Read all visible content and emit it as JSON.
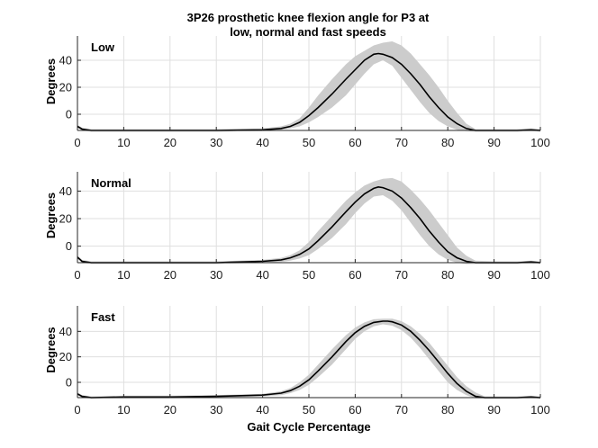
{
  "chart_data": {
    "type": "line",
    "title_lines": [
      "3P26 prosthetic knee flexion angle for P3 at",
      "low, normal and fast speeds"
    ],
    "xlabel": "Gait Cycle Percentage",
    "ylabel": "Degrees",
    "xlim": [
      0,
      100
    ],
    "xticks": [
      0,
      10,
      20,
      30,
      40,
      50,
      60,
      70,
      80,
      90,
      100
    ],
    "grid": true,
    "line_color": "#000000",
    "band_color": "#cccccc",
    "panels": [
      {
        "label": "Low",
        "ylim": [
          -12,
          58
        ],
        "yticks": [
          0,
          20,
          40
        ],
        "mean": [
          [
            0,
            -9
          ],
          [
            1,
            -11
          ],
          [
            3,
            -12
          ],
          [
            10,
            -12
          ],
          [
            20,
            -12
          ],
          [
            30,
            -12
          ],
          [
            40,
            -11.5
          ],
          [
            44,
            -10.5
          ],
          [
            46,
            -9
          ],
          [
            48,
            -6
          ],
          [
            50,
            -1
          ],
          [
            52,
            5
          ],
          [
            55,
            15
          ],
          [
            58,
            26
          ],
          [
            60,
            33
          ],
          [
            62,
            40
          ],
          [
            64,
            44.5
          ],
          [
            65,
            45
          ],
          [
            66,
            44.5
          ],
          [
            68,
            42
          ],
          [
            70,
            37
          ],
          [
            72,
            30
          ],
          [
            74,
            22
          ],
          [
            76,
            13
          ],
          [
            78,
            5
          ],
          [
            80,
            -2
          ],
          [
            82,
            -7
          ],
          [
            84,
            -10.5
          ],
          [
            86,
            -12
          ],
          [
            90,
            -12
          ],
          [
            95,
            -12
          ],
          [
            98,
            -11.5
          ],
          [
            100,
            -12
          ]
        ],
        "band_upper": [
          [
            0,
            -8
          ],
          [
            1,
            -10
          ],
          [
            3,
            -11
          ],
          [
            10,
            -11
          ],
          [
            20,
            -11
          ],
          [
            30,
            -11
          ],
          [
            40,
            -10.5
          ],
          [
            44,
            -9
          ],
          [
            46,
            -7
          ],
          [
            48,
            -3
          ],
          [
            50,
            5
          ],
          [
            52,
            14
          ],
          [
            55,
            26
          ],
          [
            58,
            37
          ],
          [
            60,
            43
          ],
          [
            62,
            47
          ],
          [
            64,
            51
          ],
          [
            66,
            53
          ],
          [
            68,
            54
          ],
          [
            70,
            51
          ],
          [
            72,
            45
          ],
          [
            74,
            37
          ],
          [
            76,
            29
          ],
          [
            78,
            20
          ],
          [
            80,
            10
          ],
          [
            82,
            1
          ],
          [
            84,
            -7
          ],
          [
            86,
            -11
          ],
          [
            90,
            -11
          ],
          [
            95,
            -11
          ],
          [
            98,
            -10.5
          ],
          [
            100,
            -11
          ]
        ],
        "band_lower": [
          [
            0,
            -10
          ],
          [
            1,
            -12
          ],
          [
            3,
            -13
          ],
          [
            10,
            -13
          ],
          [
            20,
            -13
          ],
          [
            30,
            -13
          ],
          [
            40,
            -12.5
          ],
          [
            44,
            -11.5
          ],
          [
            46,
            -10.5
          ],
          [
            48,
            -9
          ],
          [
            50,
            -6
          ],
          [
            52,
            -2
          ],
          [
            55,
            5
          ],
          [
            58,
            14
          ],
          [
            60,
            22
          ],
          [
            62,
            30
          ],
          [
            64,
            37
          ],
          [
            66,
            40
          ],
          [
            68,
            36
          ],
          [
            70,
            27
          ],
          [
            72,
            18
          ],
          [
            74,
            9
          ],
          [
            76,
            1
          ],
          [
            78,
            -5
          ],
          [
            80,
            -9
          ],
          [
            82,
            -11.5
          ],
          [
            84,
            -12.5
          ],
          [
            86,
            -13
          ],
          [
            90,
            -13
          ],
          [
            95,
            -13
          ],
          [
            98,
            -12.5
          ],
          [
            100,
            -13
          ]
        ]
      },
      {
        "label": "Normal",
        "ylim": [
          -12,
          54
        ],
        "yticks": [
          0,
          20,
          40
        ],
        "mean": [
          [
            0,
            -8
          ],
          [
            1,
            -11
          ],
          [
            3,
            -12
          ],
          [
            10,
            -12
          ],
          [
            20,
            -12
          ],
          [
            30,
            -12
          ],
          [
            40,
            -11
          ],
          [
            44,
            -10
          ],
          [
            46,
            -8.5
          ],
          [
            48,
            -6
          ],
          [
            50,
            -2
          ],
          [
            52,
            4
          ],
          [
            55,
            14
          ],
          [
            58,
            25
          ],
          [
            60,
            32
          ],
          [
            62,
            38
          ],
          [
            64,
            42
          ],
          [
            65,
            43
          ],
          [
            66,
            42.5
          ],
          [
            68,
            40
          ],
          [
            70,
            35
          ],
          [
            72,
            28
          ],
          [
            74,
            20
          ],
          [
            76,
            11
          ],
          [
            78,
            3
          ],
          [
            80,
            -4
          ],
          [
            82,
            -8.5
          ],
          [
            84,
            -11
          ],
          [
            86,
            -12
          ],
          [
            90,
            -12
          ],
          [
            95,
            -12
          ],
          [
            98,
            -11.5
          ],
          [
            100,
            -12
          ]
        ],
        "band_upper": [
          [
            0,
            -7
          ],
          [
            1,
            -10
          ],
          [
            3,
            -11
          ],
          [
            10,
            -11
          ],
          [
            20,
            -11
          ],
          [
            30,
            -11
          ],
          [
            40,
            -10
          ],
          [
            44,
            -8.5
          ],
          [
            46,
            -6.5
          ],
          [
            48,
            -3
          ],
          [
            50,
            3
          ],
          [
            52,
            11
          ],
          [
            55,
            22
          ],
          [
            58,
            33
          ],
          [
            60,
            39
          ],
          [
            62,
            44
          ],
          [
            64,
            47
          ],
          [
            66,
            49
          ],
          [
            68,
            49.5
          ],
          [
            70,
            47
          ],
          [
            72,
            41
          ],
          [
            74,
            34
          ],
          [
            76,
            26
          ],
          [
            78,
            17
          ],
          [
            80,
            8
          ],
          [
            82,
            -1
          ],
          [
            84,
            -7
          ],
          [
            86,
            -10.5
          ],
          [
            90,
            -11
          ],
          [
            95,
            -11
          ],
          [
            98,
            -10.5
          ],
          [
            100,
            -11
          ]
        ],
        "band_lower": [
          [
            0,
            -9
          ],
          [
            1,
            -12
          ],
          [
            3,
            -13
          ],
          [
            10,
            -13
          ],
          [
            20,
            -13
          ],
          [
            30,
            -13
          ],
          [
            40,
            -12
          ],
          [
            44,
            -11.5
          ],
          [
            46,
            -10.5
          ],
          [
            48,
            -9
          ],
          [
            50,
            -6.5
          ],
          [
            52,
            -2
          ],
          [
            55,
            6
          ],
          [
            58,
            16
          ],
          [
            60,
            24
          ],
          [
            62,
            31
          ],
          [
            64,
            36
          ],
          [
            66,
            37
          ],
          [
            68,
            33
          ],
          [
            70,
            26
          ],
          [
            72,
            17
          ],
          [
            74,
            8
          ],
          [
            76,
            0
          ],
          [
            78,
            -6
          ],
          [
            80,
            -10
          ],
          [
            82,
            -12
          ],
          [
            84,
            -13
          ],
          [
            86,
            -13
          ],
          [
            90,
            -13
          ],
          [
            95,
            -13
          ],
          [
            98,
            -12.5
          ],
          [
            100,
            -13
          ]
        ]
      },
      {
        "label": "Fast",
        "ylim": [
          -12,
          60
        ],
        "yticks": [
          0,
          20,
          40
        ],
        "mean": [
          [
            0,
            -9
          ],
          [
            1,
            -11
          ],
          [
            3,
            -12
          ],
          [
            10,
            -11.5
          ],
          [
            20,
            -11.5
          ],
          [
            30,
            -11
          ],
          [
            40,
            -10
          ],
          [
            44,
            -8.5
          ],
          [
            46,
            -6.5
          ],
          [
            48,
            -3
          ],
          [
            50,
            2
          ],
          [
            52,
            9
          ],
          [
            55,
            20
          ],
          [
            58,
            32
          ],
          [
            60,
            39
          ],
          [
            62,
            44
          ],
          [
            64,
            47
          ],
          [
            66,
            48
          ],
          [
            67,
            48
          ],
          [
            68,
            47.5
          ],
          [
            70,
            45
          ],
          [
            72,
            40
          ],
          [
            74,
            33
          ],
          [
            76,
            25
          ],
          [
            78,
            16
          ],
          [
            80,
            7
          ],
          [
            82,
            -1
          ],
          [
            84,
            -7
          ],
          [
            86,
            -11
          ],
          [
            88,
            -12
          ],
          [
            90,
            -12
          ],
          [
            95,
            -12
          ],
          [
            98,
            -11.5
          ],
          [
            100,
            -12
          ]
        ],
        "band_upper": [
          [
            0,
            -8
          ],
          [
            1,
            -10
          ],
          [
            3,
            -11
          ],
          [
            10,
            -10.5
          ],
          [
            20,
            -10.5
          ],
          [
            30,
            -10
          ],
          [
            40,
            -9
          ],
          [
            44,
            -7
          ],
          [
            46,
            -4.5
          ],
          [
            48,
            0
          ],
          [
            50,
            6
          ],
          [
            52,
            14
          ],
          [
            55,
            26
          ],
          [
            58,
            37
          ],
          [
            60,
            43
          ],
          [
            62,
            47
          ],
          [
            64,
            49.5
          ],
          [
            66,
            50
          ],
          [
            68,
            50
          ],
          [
            70,
            48
          ],
          [
            72,
            44
          ],
          [
            74,
            38
          ],
          [
            76,
            31
          ],
          [
            78,
            22
          ],
          [
            80,
            13
          ],
          [
            82,
            4
          ],
          [
            84,
            -3
          ],
          [
            86,
            -8
          ],
          [
            88,
            -11
          ],
          [
            90,
            -11
          ],
          [
            95,
            -11
          ],
          [
            98,
            -10.5
          ],
          [
            100,
            -11
          ]
        ],
        "band_lower": [
          [
            0,
            -10
          ],
          [
            1,
            -12
          ],
          [
            3,
            -13
          ],
          [
            10,
            -12.5
          ],
          [
            20,
            -12.5
          ],
          [
            30,
            -12
          ],
          [
            40,
            -11
          ],
          [
            44,
            -10
          ],
          [
            46,
            -8.5
          ],
          [
            48,
            -6
          ],
          [
            50,
            -2
          ],
          [
            52,
            4
          ],
          [
            55,
            14
          ],
          [
            58,
            26
          ],
          [
            60,
            34
          ],
          [
            62,
            40
          ],
          [
            64,
            44
          ],
          [
            66,
            45.5
          ],
          [
            68,
            44.5
          ],
          [
            70,
            41
          ],
          [
            72,
            35
          ],
          [
            74,
            27
          ],
          [
            76,
            18
          ],
          [
            78,
            9
          ],
          [
            80,
            0
          ],
          [
            82,
            -6
          ],
          [
            84,
            -10
          ],
          [
            86,
            -12.5
          ],
          [
            88,
            -13
          ],
          [
            90,
            -13
          ],
          [
            95,
            -13
          ],
          [
            98,
            -12.5
          ],
          [
            100,
            -13
          ]
        ]
      }
    ]
  }
}
